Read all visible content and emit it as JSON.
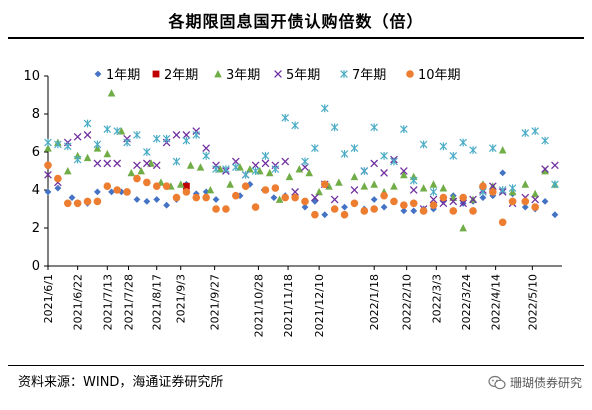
{
  "header": {
    "title": "各期限固息国开债认购倍数（倍）"
  },
  "footer": {
    "source": "资料来源：WIND，海通证券研究所",
    "watermark": "珊瑚债券研究",
    "watermark_icon": "wechat-icon"
  },
  "chart_data": {
    "type": "scatter",
    "title": "各期限固息国开债认购倍数（倍）",
    "xlabel": "",
    "ylabel": "",
    "ylim": [
      0,
      10
    ],
    "yticks": [
      "0",
      "2",
      "4",
      "6",
      "8",
      "10"
    ],
    "xlim": [
      "2021-06-01",
      "2022-05-31"
    ],
    "x_ticks": [
      {
        "label": "2021/6/1",
        "date": "2021-06-01"
      },
      {
        "label": "2021/6/22",
        "date": "2021-06-22"
      },
      {
        "label": "2021/7/13",
        "date": "2021-07-13"
      },
      {
        "label": "2021/7/28",
        "date": "2021-07-28"
      },
      {
        "label": "2021/8/17",
        "date": "2021-08-17"
      },
      {
        "label": "2021/9/3",
        "date": "2021-09-03"
      },
      {
        "label": "2021/9/27",
        "date": "2021-09-27"
      },
      {
        "label": "2021/10/28",
        "date": "2021-10-28"
      },
      {
        "label": "2021/11/18",
        "date": "2021-11-18"
      },
      {
        "label": "2021/12/10",
        "date": "2021-12-10"
      },
      {
        "label": "2022/1/18",
        "date": "2022-01-18"
      },
      {
        "label": "2022/2/10",
        "date": "2022-02-10"
      },
      {
        "label": "2022/3/3",
        "date": "2022-03-03"
      },
      {
        "label": "2022/3/24",
        "date": "2022-03-24"
      },
      {
        "label": "2022/4/14",
        "date": "2022-04-14"
      },
      {
        "label": "2022/5/10",
        "date": "2022-05-10"
      }
    ],
    "grid": false,
    "legend": "top",
    "series": [
      {
        "name": "1年期",
        "marker": "diamond",
        "color": "#4472C4",
        "points": [
          [
            "2021-06-01",
            3.9
          ],
          [
            "2021-06-08",
            4.1
          ],
          [
            "2021-06-18",
            3.6
          ],
          [
            "2021-06-29",
            3.3
          ],
          [
            "2021-07-06",
            3.9
          ],
          [
            "2021-07-16",
            3.9
          ],
          [
            "2021-07-23",
            3.9
          ],
          [
            "2021-08-03",
            3.5
          ],
          [
            "2021-08-10",
            3.4
          ],
          [
            "2021-08-17",
            3.5
          ],
          [
            "2021-08-24",
            3.2
          ],
          [
            "2021-08-31",
            3.5
          ],
          [
            "2021-09-07",
            4.3
          ],
          [
            "2021-09-14",
            3.8
          ],
          [
            "2021-09-21",
            3.9
          ],
          [
            "2021-09-28",
            3.5
          ],
          [
            "2021-10-15",
            3.7
          ],
          [
            "2021-10-22",
            4.3
          ],
          [
            "2021-11-01",
            4.0
          ],
          [
            "2021-11-08",
            3.6
          ],
          [
            "2021-11-16",
            3.7
          ],
          [
            "2021-11-23",
            3.6
          ],
          [
            "2021-11-30",
            3.1
          ],
          [
            "2021-12-07",
            3.4
          ],
          [
            "2021-12-14",
            2.7
          ],
          [
            "2021-12-21",
            3.0
          ],
          [
            "2021-12-28",
            3.1
          ],
          [
            "2022-01-11",
            3.0
          ],
          [
            "2022-01-18",
            3.5
          ],
          [
            "2022-01-25",
            3.1
          ],
          [
            "2022-02-08",
            2.9
          ],
          [
            "2022-02-15",
            2.9
          ],
          [
            "2022-02-22",
            3.0
          ],
          [
            "2022-03-01",
            3.0
          ],
          [
            "2022-03-08",
            3.4
          ],
          [
            "2022-03-15",
            3.7
          ],
          [
            "2022-03-22",
            3.3
          ],
          [
            "2022-03-29",
            3.4
          ],
          [
            "2022-04-05",
            3.6
          ],
          [
            "2022-04-12",
            3.7
          ],
          [
            "2022-04-19",
            4.9
          ],
          [
            "2022-04-26",
            3.8
          ],
          [
            "2022-05-05",
            3.1
          ],
          [
            "2022-05-12",
            3.0
          ],
          [
            "2022-05-19",
            3.4
          ],
          [
            "2022-05-26",
            2.7
          ]
        ]
      },
      {
        "name": "2年期",
        "marker": "square",
        "color": "#C00000",
        "points": [
          [
            "2021-09-07",
            4.2
          ]
        ]
      },
      {
        "name": "3年期",
        "marker": "triangle",
        "color": "#70AD47",
        "points": [
          [
            "2021-06-01",
            6.2
          ],
          [
            "2021-06-08",
            6.5
          ],
          [
            "2021-06-15",
            5.0
          ],
          [
            "2021-06-22",
            5.8
          ],
          [
            "2021-06-29",
            5.7
          ],
          [
            "2021-07-06",
            6.2
          ],
          [
            "2021-07-13",
            5.9
          ],
          [
            "2021-07-16",
            9.1
          ],
          [
            "2021-07-23",
            7.1
          ],
          [
            "2021-07-30",
            4.9
          ],
          [
            "2021-08-06",
            5.0
          ],
          [
            "2021-08-13",
            5.4
          ],
          [
            "2021-08-20",
            4.4
          ],
          [
            "2021-08-27",
            4.2
          ],
          [
            "2021-09-03",
            4.3
          ],
          [
            "2021-09-10",
            5.3
          ],
          [
            "2021-09-17",
            5.2
          ],
          [
            "2021-09-24",
            4.0
          ],
          [
            "2021-10-01",
            5.1
          ],
          [
            "2021-10-08",
            4.3
          ],
          [
            "2021-10-15",
            5.2
          ],
          [
            "2021-10-22",
            5.1
          ],
          [
            "2021-10-29",
            5.0
          ],
          [
            "2021-11-05",
            4.9
          ],
          [
            "2021-11-12",
            3.5
          ],
          [
            "2021-11-19",
            4.7
          ],
          [
            "2021-11-26",
            5.1
          ],
          [
            "2021-12-03",
            4.9
          ],
          [
            "2021-12-10",
            3.9
          ],
          [
            "2021-12-17",
            4.2
          ],
          [
            "2021-12-24",
            4.4
          ],
          [
            "2022-01-04",
            4.7
          ],
          [
            "2022-01-11",
            4.2
          ],
          [
            "2022-01-18",
            4.3
          ],
          [
            "2022-01-25",
            3.9
          ],
          [
            "2022-02-01",
            4.2
          ],
          [
            "2022-02-08",
            4.8
          ],
          [
            "2022-02-15",
            4.7
          ],
          [
            "2022-02-22",
            4.1
          ],
          [
            "2022-03-01",
            4.3
          ],
          [
            "2022-03-08",
            4.1
          ],
          [
            "2022-03-15",
            3.6
          ],
          [
            "2022-03-22",
            2.0
          ],
          [
            "2022-03-29",
            3.5
          ],
          [
            "2022-04-05",
            4.3
          ],
          [
            "2022-04-12",
            4.2
          ],
          [
            "2022-04-19",
            6.1
          ],
          [
            "2022-04-26",
            3.9
          ],
          [
            "2022-05-05",
            4.3
          ],
          [
            "2022-05-12",
            3.8
          ],
          [
            "2022-05-19",
            5.0
          ],
          [
            "2022-05-26",
            4.3
          ]
        ]
      },
      {
        "name": "5年期",
        "marker": "x",
        "color": "#7030A0",
        "points": [
          [
            "2021-06-01",
            4.8
          ],
          [
            "2021-06-08",
            4.4
          ],
          [
            "2021-06-15",
            6.5
          ],
          [
            "2021-06-22",
            6.8
          ],
          [
            "2021-06-29",
            6.9
          ],
          [
            "2021-07-06",
            5.4
          ],
          [
            "2021-07-13",
            5.4
          ],
          [
            "2021-07-20",
            5.4
          ],
          [
            "2021-07-27",
            6.7
          ],
          [
            "2021-08-03",
            5.3
          ],
          [
            "2021-08-10",
            5.4
          ],
          [
            "2021-08-17",
            5.3
          ],
          [
            "2021-08-24",
            6.5
          ],
          [
            "2021-08-31",
            6.9
          ],
          [
            "2021-09-07",
            6.9
          ],
          [
            "2021-09-14",
            7.1
          ],
          [
            "2021-09-21",
            6.2
          ],
          [
            "2021-09-28",
            5.3
          ],
          [
            "2021-10-05",
            5.0
          ],
          [
            "2021-10-12",
            5.5
          ],
          [
            "2021-10-19",
            4.8
          ],
          [
            "2021-10-26",
            5.3
          ],
          [
            "2021-11-02",
            5.4
          ],
          [
            "2021-11-09",
            5.3
          ],
          [
            "2021-11-16",
            5.5
          ],
          [
            "2021-11-23",
            3.9
          ],
          [
            "2021-11-30",
            5.2
          ],
          [
            "2021-12-07",
            3.6
          ],
          [
            "2021-12-14",
            4.3
          ],
          [
            "2021-12-21",
            3.5
          ],
          [
            "2022-01-04",
            4.0
          ],
          [
            "2022-01-11",
            5.0
          ],
          [
            "2022-01-18",
            5.4
          ],
          [
            "2022-01-25",
            4.9
          ],
          [
            "2022-02-01",
            5.6
          ],
          [
            "2022-02-08",
            5.0
          ],
          [
            "2022-02-15",
            4.0
          ],
          [
            "2022-02-22",
            3.0
          ],
          [
            "2022-03-01",
            3.5
          ],
          [
            "2022-03-08",
            3.3
          ],
          [
            "2022-03-15",
            3.4
          ],
          [
            "2022-03-22",
            3.3
          ],
          [
            "2022-03-29",
            3.5
          ],
          [
            "2022-04-05",
            4.0
          ],
          [
            "2022-04-12",
            4.2
          ],
          [
            "2022-04-19",
            3.9
          ],
          [
            "2022-04-26",
            3.3
          ],
          [
            "2022-05-05",
            3.6
          ],
          [
            "2022-05-12",
            3.5
          ],
          [
            "2022-05-19",
            5.1
          ],
          [
            "2022-05-26",
            5.3
          ]
        ]
      },
      {
        "name": "7年期",
        "marker": "star",
        "color": "#4BACC6",
        "points": [
          [
            "2021-06-01",
            6.5
          ],
          [
            "2021-06-08",
            6.4
          ],
          [
            "2021-06-15",
            6.3
          ],
          [
            "2021-06-22",
            5.6
          ],
          [
            "2021-06-29",
            7.5
          ],
          [
            "2021-07-06",
            6.4
          ],
          [
            "2021-07-13",
            7.2
          ],
          [
            "2021-07-20",
            7.1
          ],
          [
            "2021-07-27",
            6.5
          ],
          [
            "2021-08-03",
            6.9
          ],
          [
            "2021-08-10",
            6.0
          ],
          [
            "2021-08-17",
            6.7
          ],
          [
            "2021-08-24",
            6.7
          ],
          [
            "2021-08-31",
            5.5
          ],
          [
            "2021-09-07",
            6.6
          ],
          [
            "2021-09-14",
            6.9
          ],
          [
            "2021-09-21",
            5.8
          ],
          [
            "2021-09-28",
            5.1
          ],
          [
            "2021-10-05",
            5.1
          ],
          [
            "2021-10-12",
            5.2
          ],
          [
            "2021-10-19",
            4.8
          ],
          [
            "2021-10-26",
            5.0
          ],
          [
            "2021-11-02",
            5.8
          ],
          [
            "2021-11-09",
            5.1
          ],
          [
            "2021-11-16",
            7.8
          ],
          [
            "2021-11-23",
            7.4
          ],
          [
            "2021-11-30",
            5.5
          ],
          [
            "2021-12-07",
            6.2
          ],
          [
            "2021-12-14",
            8.3
          ],
          [
            "2021-12-21",
            7.3
          ],
          [
            "2021-12-28",
            5.9
          ],
          [
            "2022-01-04",
            6.2
          ],
          [
            "2022-01-11",
            5.0
          ],
          [
            "2022-01-18",
            7.3
          ],
          [
            "2022-01-25",
            5.8
          ],
          [
            "2022-02-01",
            5.5
          ],
          [
            "2022-02-08",
            7.2
          ],
          [
            "2022-02-15",
            4.5
          ],
          [
            "2022-02-22",
            6.4
          ],
          [
            "2022-03-01",
            3.9
          ],
          [
            "2022-03-08",
            6.3
          ],
          [
            "2022-03-15",
            5.8
          ],
          [
            "2022-03-22",
            6.5
          ],
          [
            "2022-03-29",
            6.1
          ],
          [
            "2022-04-05",
            3.9
          ],
          [
            "2022-04-12",
            6.2
          ],
          [
            "2022-04-19",
            4.0
          ],
          [
            "2022-04-26",
            4.1
          ],
          [
            "2022-05-05",
            7.0
          ],
          [
            "2022-05-12",
            7.1
          ],
          [
            "2022-05-19",
            6.6
          ],
          [
            "2022-05-26",
            4.3
          ]
        ]
      },
      {
        "name": "10年期",
        "marker": "circle",
        "color": "#ED7D31",
        "points": [
          [
            "2021-06-01",
            5.3
          ],
          [
            "2021-06-08",
            4.6
          ],
          [
            "2021-06-15",
            3.3
          ],
          [
            "2021-06-22",
            3.3
          ],
          [
            "2021-06-29",
            3.4
          ],
          [
            "2021-07-06",
            3.4
          ],
          [
            "2021-07-13",
            4.2
          ],
          [
            "2021-07-20",
            4.0
          ],
          [
            "2021-07-27",
            3.9
          ],
          [
            "2021-08-03",
            4.6
          ],
          [
            "2021-08-10",
            4.4
          ],
          [
            "2021-08-17",
            4.2
          ],
          [
            "2021-08-24",
            4.2
          ],
          [
            "2021-08-31",
            3.6
          ],
          [
            "2021-09-07",
            3.9
          ],
          [
            "2021-09-14",
            3.6
          ],
          [
            "2021-09-21",
            3.6
          ],
          [
            "2021-09-28",
            3.0
          ],
          [
            "2021-10-05",
            3.0
          ],
          [
            "2021-10-12",
            3.7
          ],
          [
            "2021-10-19",
            4.2
          ],
          [
            "2021-10-26",
            3.1
          ],
          [
            "2021-11-02",
            4.0
          ],
          [
            "2021-11-09",
            4.1
          ],
          [
            "2021-11-16",
            3.6
          ],
          [
            "2021-11-23",
            3.6
          ],
          [
            "2021-11-30",
            3.4
          ],
          [
            "2021-12-07",
            2.7
          ],
          [
            "2021-12-14",
            4.3
          ],
          [
            "2021-12-21",
            3.0
          ],
          [
            "2021-12-28",
            2.7
          ],
          [
            "2022-01-04",
            3.3
          ],
          [
            "2022-01-11",
            2.9
          ],
          [
            "2022-01-18",
            3.0
          ],
          [
            "2022-01-25",
            3.7
          ],
          [
            "2022-02-01",
            3.4
          ],
          [
            "2022-02-08",
            3.2
          ],
          [
            "2022-02-15",
            3.3
          ],
          [
            "2022-02-22",
            2.9
          ],
          [
            "2022-03-01",
            3.2
          ],
          [
            "2022-03-08",
            3.6
          ],
          [
            "2022-03-15",
            2.9
          ],
          [
            "2022-03-22",
            3.6
          ],
          [
            "2022-03-29",
            2.9
          ],
          [
            "2022-04-05",
            4.2
          ],
          [
            "2022-04-12",
            3.9
          ],
          [
            "2022-04-19",
            2.3
          ],
          [
            "2022-04-26",
            3.4
          ],
          [
            "2022-05-05",
            3.4
          ],
          [
            "2022-05-12",
            3.1
          ]
        ]
      }
    ]
  }
}
